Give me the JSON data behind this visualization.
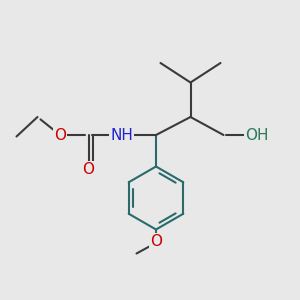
{
  "bg_color": "#e8e8e8",
  "bond_color": "#3a3a3a",
  "ring_color": "#2a6a6a",
  "bond_width": 1.5,
  "atom_colors": {
    "O": "#cc0000",
    "N": "#2222cc",
    "OH": "#2a7a5a",
    "C": "#3a3a3a"
  },
  "font_size_atoms": 11,
  "font_size_small": 10
}
